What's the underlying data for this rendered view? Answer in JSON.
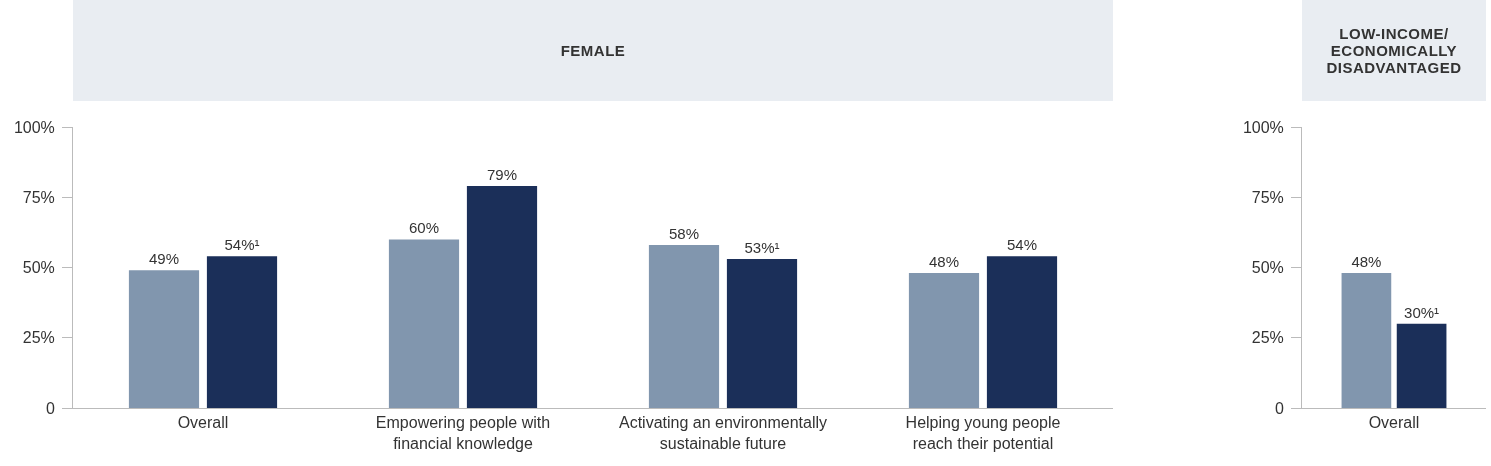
{
  "chart_data": [
    {
      "type": "bar",
      "title": "FEMALE",
      "categories": [
        "Overall",
        "Empowering people with\nfinancial knowledge",
        "Activating an environmentally\nsustainable future",
        "Helping young people\nreach their potential"
      ],
      "series": [
        {
          "color": "#8196ae",
          "values": [
            49,
            60,
            58,
            48
          ],
          "value_labels": [
            "49%",
            "60%",
            "58%",
            "48%"
          ]
        },
        {
          "color": "#1b2f59",
          "values": [
            54,
            79,
            53,
            54
          ],
          "value_labels": [
            "54%¹",
            "79%",
            "53%¹",
            "54%"
          ]
        }
      ],
      "ylim": [
        0,
        100
      ],
      "yticks": [
        {
          "value": 0,
          "label": "0"
        },
        {
          "value": 25,
          "label": "25%"
        },
        {
          "value": 50,
          "label": "50%"
        },
        {
          "value": 75,
          "label": "75%"
        },
        {
          "value": 100,
          "label": "100%"
        }
      ],
      "grid": false
    },
    {
      "type": "bar",
      "title": "LOW-INCOME/\nECONOMICALLY\nDISADVANTAGED",
      "categories": [
        "Overall"
      ],
      "series": [
        {
          "color": "#8196ae",
          "values": [
            48
          ],
          "value_labels": [
            "48%"
          ]
        },
        {
          "color": "#1b2f59",
          "values": [
            30
          ],
          "value_labels": [
            "30%¹"
          ]
        }
      ],
      "ylim": [
        0,
        100
      ],
      "yticks": [
        {
          "value": 0,
          "label": "0"
        },
        {
          "value": 25,
          "label": "25%"
        },
        {
          "value": 50,
          "label": "50%"
        },
        {
          "value": 75,
          "label": "75%"
        },
        {
          "value": 100,
          "label": "100%"
        }
      ],
      "grid": false
    }
  ]
}
